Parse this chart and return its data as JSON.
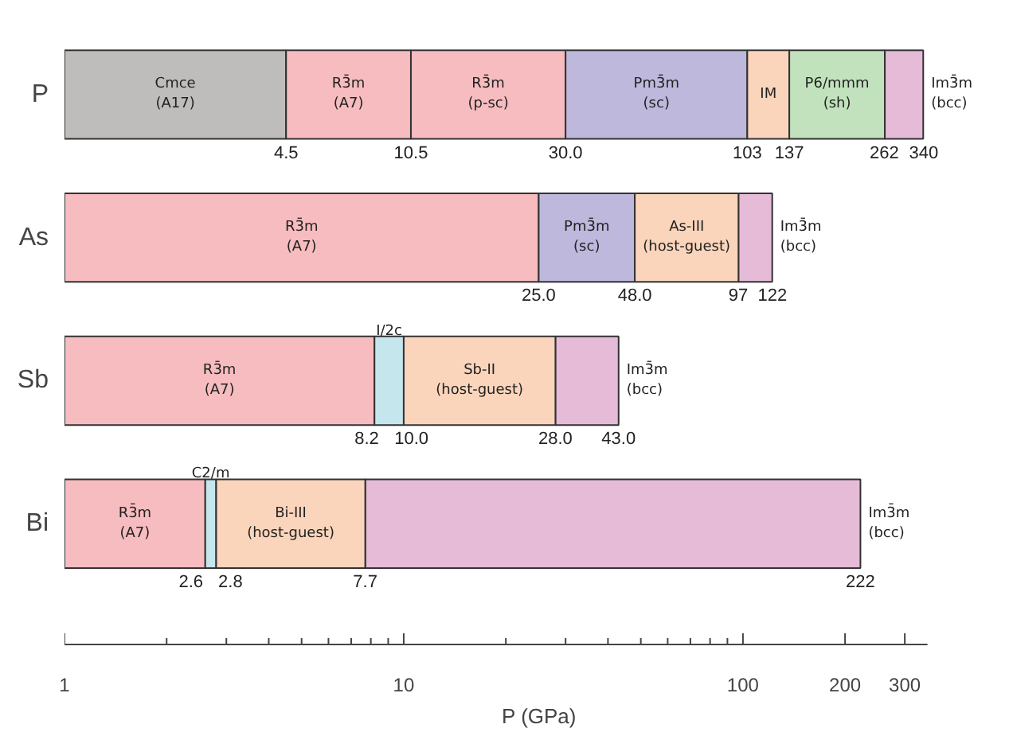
{
  "chart_data": {
    "type": "bar",
    "orientation": "horizontal",
    "log": "x",
    "grid": false,
    "categories": [
      "P",
      "As",
      "Sb",
      "Bi"
    ],
    "xlabel": "P (GPa)",
    "xlim": [
      1,
      350
    ],
    "xticks": [
      1,
      10,
      100,
      200,
      300
    ],
    "series": [
      {
        "name": "Cmce\n(A17)",
        "color": "#bfbcbc",
        "base": [
          1,
          null,
          null,
          null
        ],
        "values": [
          3.5,
          null,
          null,
          null
        ]
      },
      {
        "name": "R3̄m\n(A7)",
        "color": "#f6bcbf",
        "base": [
          4.5,
          1,
          1,
          1
        ],
        "values": [
          6.0,
          24.0,
          7.2,
          1.6
        ]
      },
      {
        "name": "R3̄m\n(p-sc)",
        "color": "#f6bcbf",
        "base": [
          10.5,
          null,
          null,
          null
        ],
        "values": [
          19.5,
          null,
          null,
          null
        ]
      },
      {
        "name": "Pm3̄m\n(sc)",
        "color": "#bdb8dc",
        "base": [
          30.0,
          25.0,
          null,
          null
        ],
        "values": [
          73,
          23.0,
          null,
          null
        ]
      },
      {
        "name": "IM",
        "color": "#fbd5bb",
        "base": [
          103,
          null,
          null,
          null
        ],
        "values": [
          34,
          null,
          null,
          null
        ]
      },
      {
        "name": "P6/mmm\n(sh)",
        "color": "#c2e2bd",
        "base": [
          137,
          null,
          null,
          null
        ],
        "values": [
          125,
          null,
          null,
          null
        ]
      },
      {
        "name": "Im3̄m\n(bcc)",
        "color": "#e5bbd8",
        "base": [
          262,
          97,
          28.0,
          7.7
        ],
        "values": [
          78,
          25,
          15.0,
          214.3
        ]
      },
      {
        "name": "As-III\n(host-guest)",
        "color": "#fbd5bb",
        "base": [
          null,
          48.0,
          null,
          null
        ],
        "values": [
          null,
          49,
          null,
          null
        ]
      },
      {
        "name": "I/2c",
        "color": "#c5e6ec",
        "base": [
          null,
          null,
          8.2,
          null
        ],
        "values": [
          null,
          null,
          1.8,
          null
        ]
      },
      {
        "name": "Sb-II\n(host-guest)",
        "color": "#fbd5bb",
        "base": [
          null,
          null,
          10.0,
          null
        ],
        "values": [
          null,
          null,
          18.0,
          null
        ]
      },
      {
        "name": "C2/m",
        "color": "#c5e6ec",
        "base": [
          null,
          null,
          null,
          2.6
        ],
        "values": [
          null,
          null,
          null,
          0.2
        ]
      },
      {
        "name": "Bi-III\n(host-guest)",
        "color": "#fbd5bb",
        "base": [
          null,
          null,
          null,
          2.8
        ],
        "values": [
          null,
          null,
          null,
          4.9
        ]
      }
    ],
    "annotations": [
      {
        "text": "4.5",
        "x": 4.5,
        "y": "P"
      },
      {
        "text": "10.5",
        "x": 10.5,
        "y": "P"
      },
      {
        "text": "30.0",
        "x": 30.0,
        "y": "P"
      },
      {
        "text": "103",
        "x": 103,
        "y": "P"
      },
      {
        "text": "137",
        "x": 137,
        "y": "P"
      },
      {
        "text": "262",
        "x": 262,
        "y": "P"
      },
      {
        "text": "340",
        "x": 340,
        "y": "P"
      },
      {
        "text": "25.0",
        "x": 25.0,
        "y": "As"
      },
      {
        "text": "48.0",
        "x": 48.0,
        "y": "As"
      },
      {
        "text": "97",
        "x": 97,
        "y": "As"
      },
      {
        "text": "122",
        "x": 122,
        "y": "As"
      },
      {
        "text": "8.2",
        "x": 8.2,
        "y": "Sb"
      },
      {
        "text": "10.0",
        "x": 10.0,
        "y": "Sb"
      },
      {
        "text": "28.0",
        "x": 28.0,
        "y": "Sb"
      },
      {
        "text": "43.0",
        "x": 43.0,
        "y": "Sb"
      },
      {
        "text": "2.6",
        "x": 2.6,
        "y": "Bi"
      },
      {
        "text": "2.8",
        "x": 2.8,
        "y": "Bi"
      },
      {
        "text": "7.7",
        "x": 7.7,
        "y": "Bi"
      },
      {
        "text": "222",
        "x": 222,
        "y": "Bi"
      }
    ]
  }
}
